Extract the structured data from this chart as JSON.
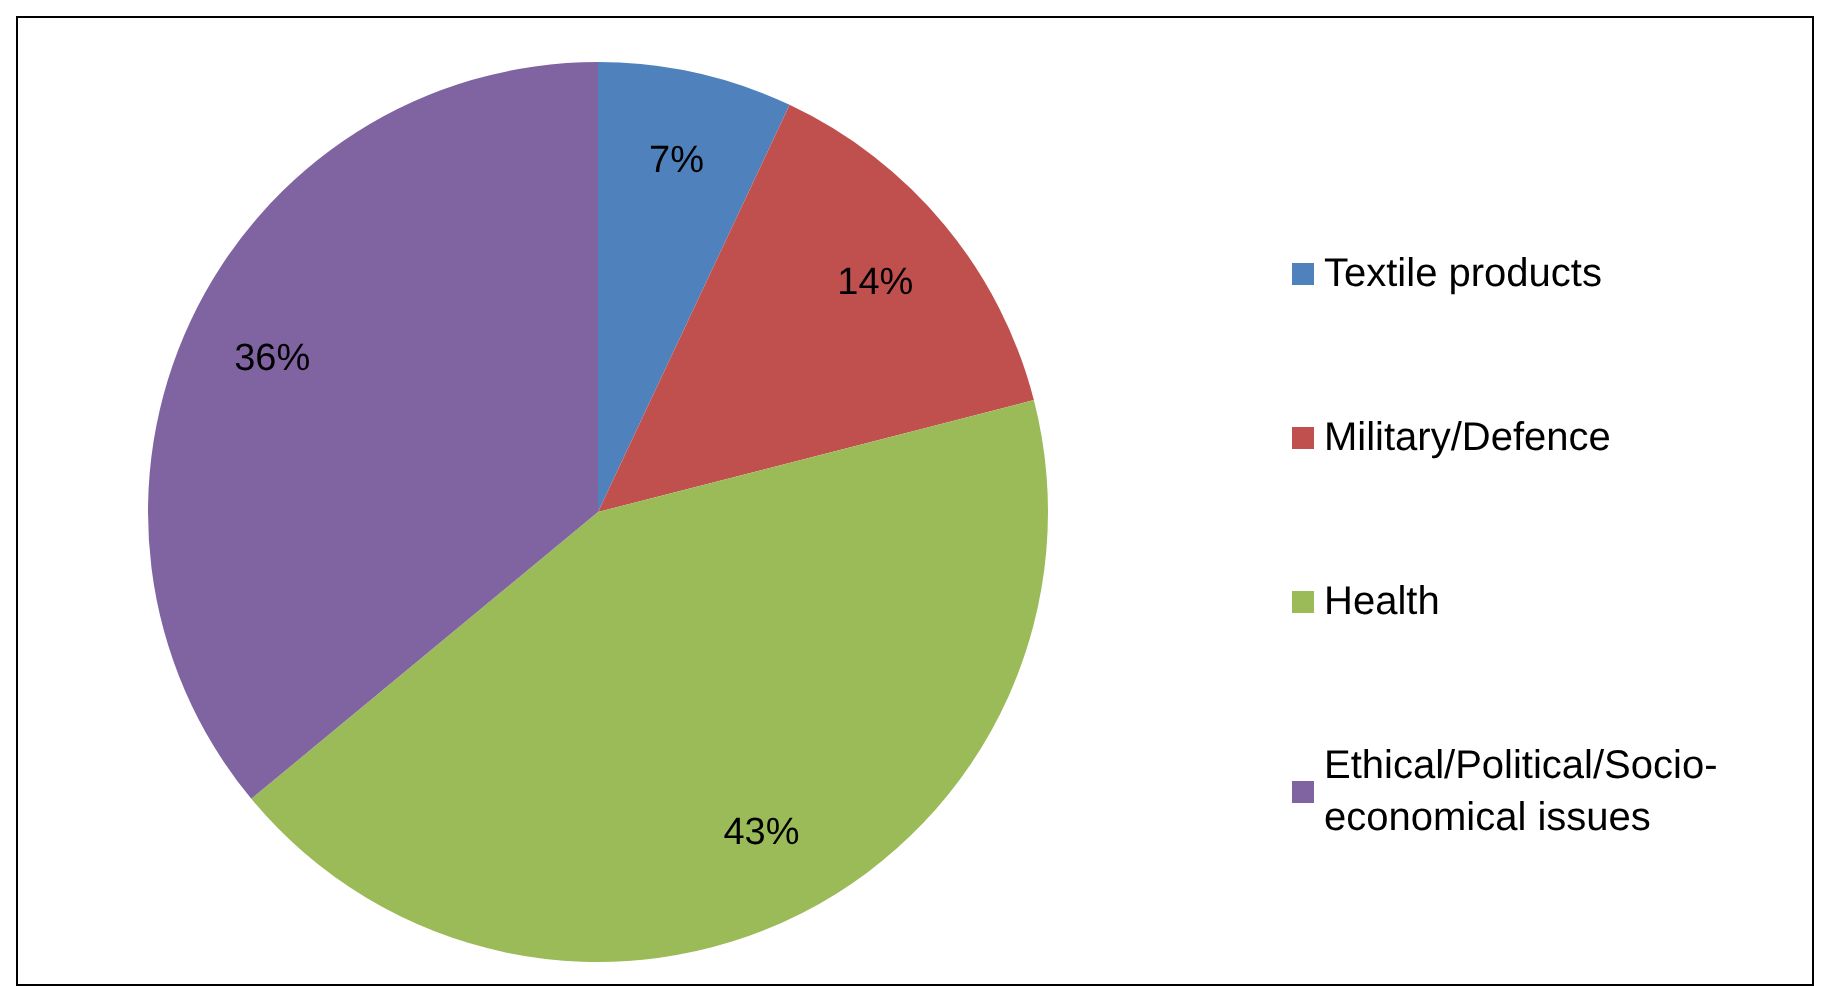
{
  "chart_data": {
    "type": "pie",
    "categories": [
      "Textile products",
      "Military/Defence",
      "Health",
      "Ethical/Political/Socio-economical issues"
    ],
    "values": [
      7,
      14,
      43,
      36
    ],
    "colors": [
      "#4f81bd",
      "#c0504d",
      "#9bbb59",
      "#8064a2"
    ],
    "value_labels": [
      "7%",
      "14%",
      "43%",
      "36%"
    ],
    "legend": "right"
  }
}
